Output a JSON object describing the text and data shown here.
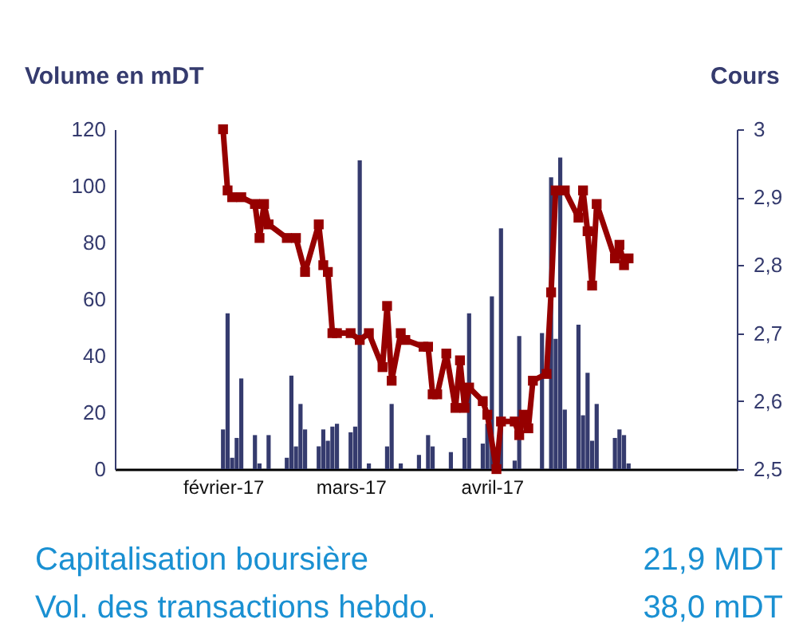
{
  "chart_data": {
    "type": "bar",
    "ylabel": "Volume en mDT",
    "y2label": "Cours",
    "xlim": [
      "2017-01-10",
      "2017-05-23"
    ],
    "xticks": [
      {
        "value": "2017-02-01",
        "label": "février-17"
      },
      {
        "value": "2017-03-01",
        "label": "mars-17"
      },
      {
        "value": "2017-04-01",
        "label": "avril-17"
      }
    ],
    "ylim": [
      0,
      120
    ],
    "yticks": [
      0,
      20,
      40,
      60,
      80,
      100,
      120
    ],
    "y2lim": [
      2.5,
      3
    ],
    "y2ticks": [
      {
        "value": 2.5,
        "label": "2,5"
      },
      {
        "value": 2.6,
        "label": "2,6"
      },
      {
        "value": 2.7,
        "label": "2,7"
      },
      {
        "value": 2.8,
        "label": "2,8"
      },
      {
        "value": 2.9,
        "label": "2,9"
      },
      3
    ],
    "marker": "square",
    "series": [
      {
        "color": "#353b6e",
        "x": [
          "2017-02-01",
          "2017-02-02",
          "2017-02-03",
          "2017-02-04",
          "2017-02-05",
          "2017-02-08",
          "2017-02-09",
          "2017-02-11",
          "2017-02-15",
          "2017-02-16",
          "2017-02-17",
          "2017-02-18",
          "2017-02-19",
          "2017-02-22",
          "2017-02-23",
          "2017-02-24",
          "2017-02-25",
          "2017-02-26",
          "2017-03-01",
          "2017-03-02",
          "2017-03-03",
          "2017-03-05",
          "2017-03-09",
          "2017-03-10",
          "2017-03-12",
          "2017-03-16",
          "2017-03-18",
          "2017-03-19",
          "2017-03-23",
          "2017-03-26",
          "2017-03-27",
          "2017-03-30",
          "2017-03-31",
          "2017-04-01",
          "2017-04-03",
          "2017-04-06",
          "2017-04-07",
          "2017-04-12",
          "2017-04-14",
          "2017-04-15",
          "2017-04-16",
          "2017-04-17",
          "2017-04-20",
          "2017-04-21",
          "2017-04-22",
          "2017-04-23",
          "2017-04-24",
          "2017-04-28",
          "2017-04-29",
          "2017-04-30",
          "2017-05-01"
        ],
        "values": [
          14,
          55,
          4,
          11,
          32,
          12,
          2,
          12,
          4,
          33,
          8,
          23,
          14,
          8,
          14,
          10,
          15,
          16,
          13,
          15,
          109,
          2,
          8,
          23,
          2,
          5,
          12,
          8,
          6,
          11,
          55,
          9,
          16,
          61,
          85,
          3,
          47,
          48,
          103,
          46,
          110,
          21,
          51,
          19,
          34,
          10,
          23,
          11,
          14,
          12,
          2
        ]
      },
      {
        "type": "line",
        "axis": "y2",
        "color": "#960000",
        "x": [
          "2017-02-01",
          "2017-02-02",
          "2017-02-03",
          "2017-02-05",
          "2017-02-08",
          "2017-02-09",
          "2017-02-10",
          "2017-02-11",
          "2017-02-15",
          "2017-02-17",
          "2017-02-19",
          "2017-02-22",
          "2017-02-23",
          "2017-02-24",
          "2017-02-25",
          "2017-02-26",
          "2017-03-01",
          "2017-03-03",
          "2017-03-05",
          "2017-03-08",
          "2017-03-09",
          "2017-03-10",
          "2017-03-12",
          "2017-03-13",
          "2017-03-17",
          "2017-03-18",
          "2017-03-19",
          "2017-03-20",
          "2017-03-22",
          "2017-03-24",
          "2017-03-25",
          "2017-03-26",
          "2017-03-27",
          "2017-03-30",
          "2017-03-31",
          "2017-04-02",
          "2017-04-03",
          "2017-04-06",
          "2017-04-07",
          "2017-04-08",
          "2017-04-09",
          "2017-04-10",
          "2017-04-13",
          "2017-04-14",
          "2017-04-15",
          "2017-04-17",
          "2017-04-20",
          "2017-04-21",
          "2017-04-22",
          "2017-04-23",
          "2017-04-24",
          "2017-04-28",
          "2017-04-29",
          "2017-04-30",
          "2017-05-01"
        ],
        "values": [
          3.0,
          2.91,
          2.9,
          2.9,
          2.89,
          2.84,
          2.89,
          2.86,
          2.84,
          2.84,
          2.79,
          2.86,
          2.8,
          2.79,
          2.7,
          2.7,
          2.7,
          2.69,
          2.7,
          2.65,
          2.74,
          2.63,
          2.7,
          2.69,
          2.68,
          2.68,
          2.61,
          2.61,
          2.67,
          2.59,
          2.66,
          2.59,
          2.62,
          2.6,
          2.58,
          2.5,
          2.57,
          2.57,
          2.55,
          2.58,
          2.56,
          2.63,
          2.64,
          2.76,
          2.91,
          2.91,
          2.87,
          2.91,
          2.85,
          2.77,
          2.89,
          2.81,
          2.83,
          2.8,
          2.81
        ]
      }
    ],
    "annotations": [
      "Capitalisation boursière",
      "21,9 MDT",
      "Vol. des transactions hebdo.",
      "38,0 mDT"
    ]
  }
}
